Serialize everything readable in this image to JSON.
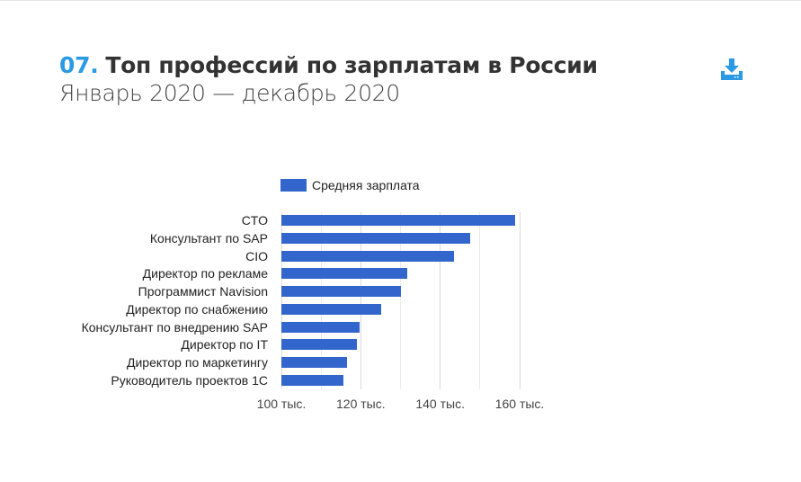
{
  "header": {
    "number": "07.",
    "title": "Топ профессий по зарплатам в России",
    "subtitle": "Январь 2020 — декабрь 2020",
    "download_icon": "download-icon",
    "accent_color": "#2a9ae5"
  },
  "chart_data": {
    "type": "bar",
    "orientation": "horizontal",
    "title": "Топ профессий по зарплатам в России",
    "subtitle": "Январь 2020 — декабрь 2020",
    "legend": [
      "Средняя зарплата"
    ],
    "legend_position": "top",
    "categories": [
      "CTO",
      "Консультант по SAP",
      "CIO",
      "Директор по рекламе",
      "Программист Navision",
      "Директор по снабжению",
      "Консультант по внедрению SAP",
      "Директор по IT",
      "Директор по маркетингу",
      "Руководитель проектов 1С"
    ],
    "series": [
      {
        "name": "Средняя зарплата",
        "color": "#3366cc",
        "values": [
          158800,
          147500,
          143400,
          131700,
          130000,
          125100,
          119700,
          119000,
          116500,
          115600
        ]
      }
    ],
    "xlabel": "",
    "ylabel": "",
    "xlim": [
      100000,
      160000
    ],
    "xticks": [
      "100 тыс.",
      "120 тыс.",
      "140 тыс.",
      "160 тыс."
    ],
    "grid": true
  }
}
